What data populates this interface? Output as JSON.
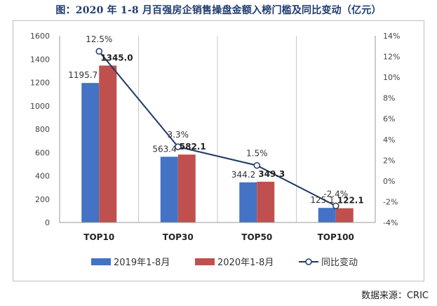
{
  "title": "图：2020 年 1-8 月百强房企销售操盘金额入榜门槛及同比变动（亿元）",
  "source": "数据来源：CRIC",
  "chart_data": {
    "type": "bar",
    "categories": [
      "TOP10",
      "TOP30",
      "TOP50",
      "TOP100"
    ],
    "series": [
      {
        "name": "2019年1-8月",
        "type": "bar",
        "axis": "left",
        "color": "#4472c4",
        "values": [
          1195.7,
          563.4,
          344.2,
          125.1
        ],
        "labels": [
          "1195.7",
          "563.4",
          "344.2",
          "125.1"
        ]
      },
      {
        "name": "2020年1-8月",
        "type": "bar",
        "axis": "left",
        "color": "#c0504d",
        "values": [
          1345.0,
          582.1,
          349.3,
          122.1
        ],
        "labels": [
          "1345.0",
          "582.1",
          "349.3",
          "122.1"
        ]
      },
      {
        "name": "同比变动",
        "type": "line",
        "axis": "right",
        "color": "#1f3864",
        "values": [
          12.5,
          3.3,
          1.5,
          -2.4
        ],
        "labels": [
          "12.5%",
          "3.3%",
          "1.5%",
          "-2.4%"
        ]
      }
    ],
    "ylim_left": [
      0,
      1600
    ],
    "yticks_left": [
      "0",
      "200",
      "400",
      "600",
      "800",
      "1000",
      "1200",
      "1400",
      "1600"
    ],
    "ylim_right": [
      -4,
      14
    ],
    "yticks_right": [
      "-4%",
      "-2%",
      "0%",
      "2%",
      "4%",
      "6%",
      "8%",
      "10%",
      "12%",
      "14%"
    ],
    "grid": "vertical category separators",
    "legend": "bottom"
  }
}
